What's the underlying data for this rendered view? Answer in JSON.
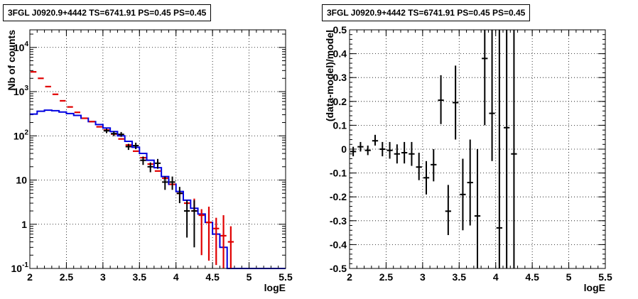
{
  "chart_data": [
    {
      "type": "line",
      "title": "3FGL J0920.9+4442 TS=6741.91 PS=0.45 PS=0.45",
      "xlabel": "logE",
      "ylabel": "Nb of counts",
      "log_y": true,
      "grid": true,
      "xlim": [
        2,
        5.5
      ],
      "ylim": [
        0.1,
        25000
      ],
      "x_ticks": [
        "2",
        "2.5",
        "3",
        "3.5",
        "4",
        "4.5",
        "5",
        "5.5"
      ],
      "y_ticks": [
        {
          "v": 0.1,
          "label": "10",
          "exp": "-1"
        },
        {
          "v": 1,
          "label": "1",
          "exp": ""
        },
        {
          "v": 10,
          "label": "10",
          "exp": ""
        },
        {
          "v": 100,
          "label": "10",
          "exp": "2"
        },
        {
          "v": 1000,
          "label": "10",
          "exp": "3"
        },
        {
          "v": 10000,
          "label": "10",
          "exp": "4"
        }
      ],
      "bin_edges": [
        2.0,
        2.1,
        2.2,
        2.3,
        2.4,
        2.5,
        2.6,
        2.7,
        2.8,
        2.9,
        3.0,
        3.1,
        3.2,
        3.3,
        3.4,
        3.5,
        3.6,
        3.7,
        3.8,
        3.9,
        4.0,
        4.1,
        4.2,
        4.3,
        4.4,
        4.5,
        4.6,
        4.7,
        4.8,
        5.5
      ],
      "series": [
        {
          "name": "model",
          "color": "#e00000",
          "style": "points_with_errors",
          "x": [
            2.05,
            2.15,
            2.25,
            2.35,
            2.45,
            2.55,
            2.65,
            2.75,
            2.85,
            2.95,
            3.05,
            3.15,
            3.25,
            3.35,
            3.45,
            3.55,
            3.65,
            3.75,
            3.85,
            3.95,
            4.05,
            4.15,
            4.25,
            4.35,
            4.45,
            4.55,
            4.65,
            4.75
          ],
          "y": [
            2800,
            2000,
            1300,
            870,
            620,
            450,
            340,
            250,
            210,
            160,
            135,
            110,
            85,
            62,
            45,
            32,
            23,
            16,
            11,
            8,
            5,
            3,
            2,
            1.6,
            1.1,
            0.8,
            0.55,
            0.4
          ],
          "y_low": [
            2800,
            2000,
            1300,
            870,
            620,
            450,
            340,
            250,
            210,
            160,
            135,
            110,
            85,
            62,
            45,
            32,
            23,
            16,
            11,
            8,
            5,
            3,
            2,
            0.2,
            0.15,
            0.12,
            0.1,
            0.1
          ],
          "y_high": [
            2800,
            2000,
            1300,
            870,
            620,
            450,
            340,
            250,
            210,
            160,
            135,
            110,
            85,
            62,
            45,
            32,
            23,
            16,
            11,
            8,
            5,
            3,
            3.8,
            2.2,
            2.5,
            1.4,
            1.6,
            0.9
          ]
        },
        {
          "name": "fit",
          "color": "#0000e0",
          "style": "step",
          "y": [
            310,
            360,
            380,
            370,
            345,
            320,
            290,
            250,
            210,
            180,
            150,
            125,
            100,
            75,
            55,
            40,
            28,
            19,
            12,
            8,
            5.5,
            3.5,
            2.3,
            1.7,
            1.1,
            0.6,
            0.3,
            0.1,
            0.1
          ]
        },
        {
          "name": "data",
          "color": "#000000",
          "style": "points_with_errors",
          "x": [
            3.05,
            3.15,
            3.25,
            3.35,
            3.45,
            3.55,
            3.65,
            3.75,
            3.85,
            3.95,
            4.05,
            4.15,
            4.25
          ],
          "y": [
            130,
            112,
            108,
            57,
            60,
            28,
            20,
            24,
            9,
            9,
            5,
            2,
            2
          ],
          "y_low": [
            115,
            98,
            95,
            48,
            50,
            22,
            15,
            18,
            6,
            6,
            3,
            0.5,
            0.3
          ],
          "y_high": [
            145,
            126,
            122,
            66,
            70,
            34,
            25,
            30,
            12,
            12,
            7,
            3.5,
            3.5
          ]
        }
      ]
    },
    {
      "type": "scatter",
      "title": "3FGL J0920.9+4442 TS=6741.91 PS=0.45 PS=0.45",
      "xlabel": "logE",
      "ylabel": "(data-model)/model",
      "grid": true,
      "xlim": [
        2,
        5.5
      ],
      "ylim": [
        -0.5,
        0.5
      ],
      "x_ticks": [
        "2",
        "2.5",
        "3",
        "3.5",
        "4",
        "4.5",
        "5",
        "5.5"
      ],
      "y_ticks": [
        "-0.5",
        "-0.4",
        "-0.3",
        "-0.2",
        "-0.1",
        "0",
        "0.1",
        "0.2",
        "0.3",
        "0.4",
        "0.5"
      ],
      "y_tick_values": [
        -0.5,
        -0.4,
        -0.3,
        -0.2,
        -0.1,
        0,
        0.1,
        0.2,
        0.3,
        0.4,
        0.5
      ],
      "series": [
        {
          "name": "residuals",
          "color": "#000000",
          "x": [
            2.05,
            2.15,
            2.25,
            2.35,
            2.45,
            2.55,
            2.65,
            2.75,
            2.85,
            2.95,
            3.05,
            3.15,
            3.25,
            3.35,
            3.45,
            3.55,
            3.65,
            3.75,
            3.85,
            3.95,
            4.05,
            4.15,
            4.25
          ],
          "y": [
            -0.01,
            0.01,
            -0.005,
            0.035,
            0.0,
            -0.005,
            -0.02,
            -0.015,
            -0.02,
            -0.075,
            -0.12,
            -0.065,
            0.205,
            -0.26,
            0.195,
            -0.19,
            -0.14,
            -0.28,
            0.38,
            0.15,
            -0.33,
            0.09,
            -0.02
          ],
          "y_low": [
            -0.03,
            -0.01,
            -0.025,
            0.015,
            -0.03,
            -0.04,
            -0.06,
            -0.06,
            -0.07,
            -0.13,
            -0.19,
            -0.135,
            0.105,
            -0.36,
            0.04,
            -0.34,
            -0.32,
            -0.5,
            0.1,
            -0.05,
            -0.5,
            -0.5,
            -0.5
          ],
          "y_high": [
            0.01,
            0.03,
            0.015,
            0.06,
            0.03,
            0.03,
            0.02,
            0.03,
            0.03,
            -0.015,
            -0.05,
            0.0,
            0.31,
            -0.15,
            0.35,
            -0.04,
            0.04,
            0.0,
            0.5,
            0.5,
            0.5,
            0.5,
            0.5
          ]
        }
      ]
    }
  ]
}
